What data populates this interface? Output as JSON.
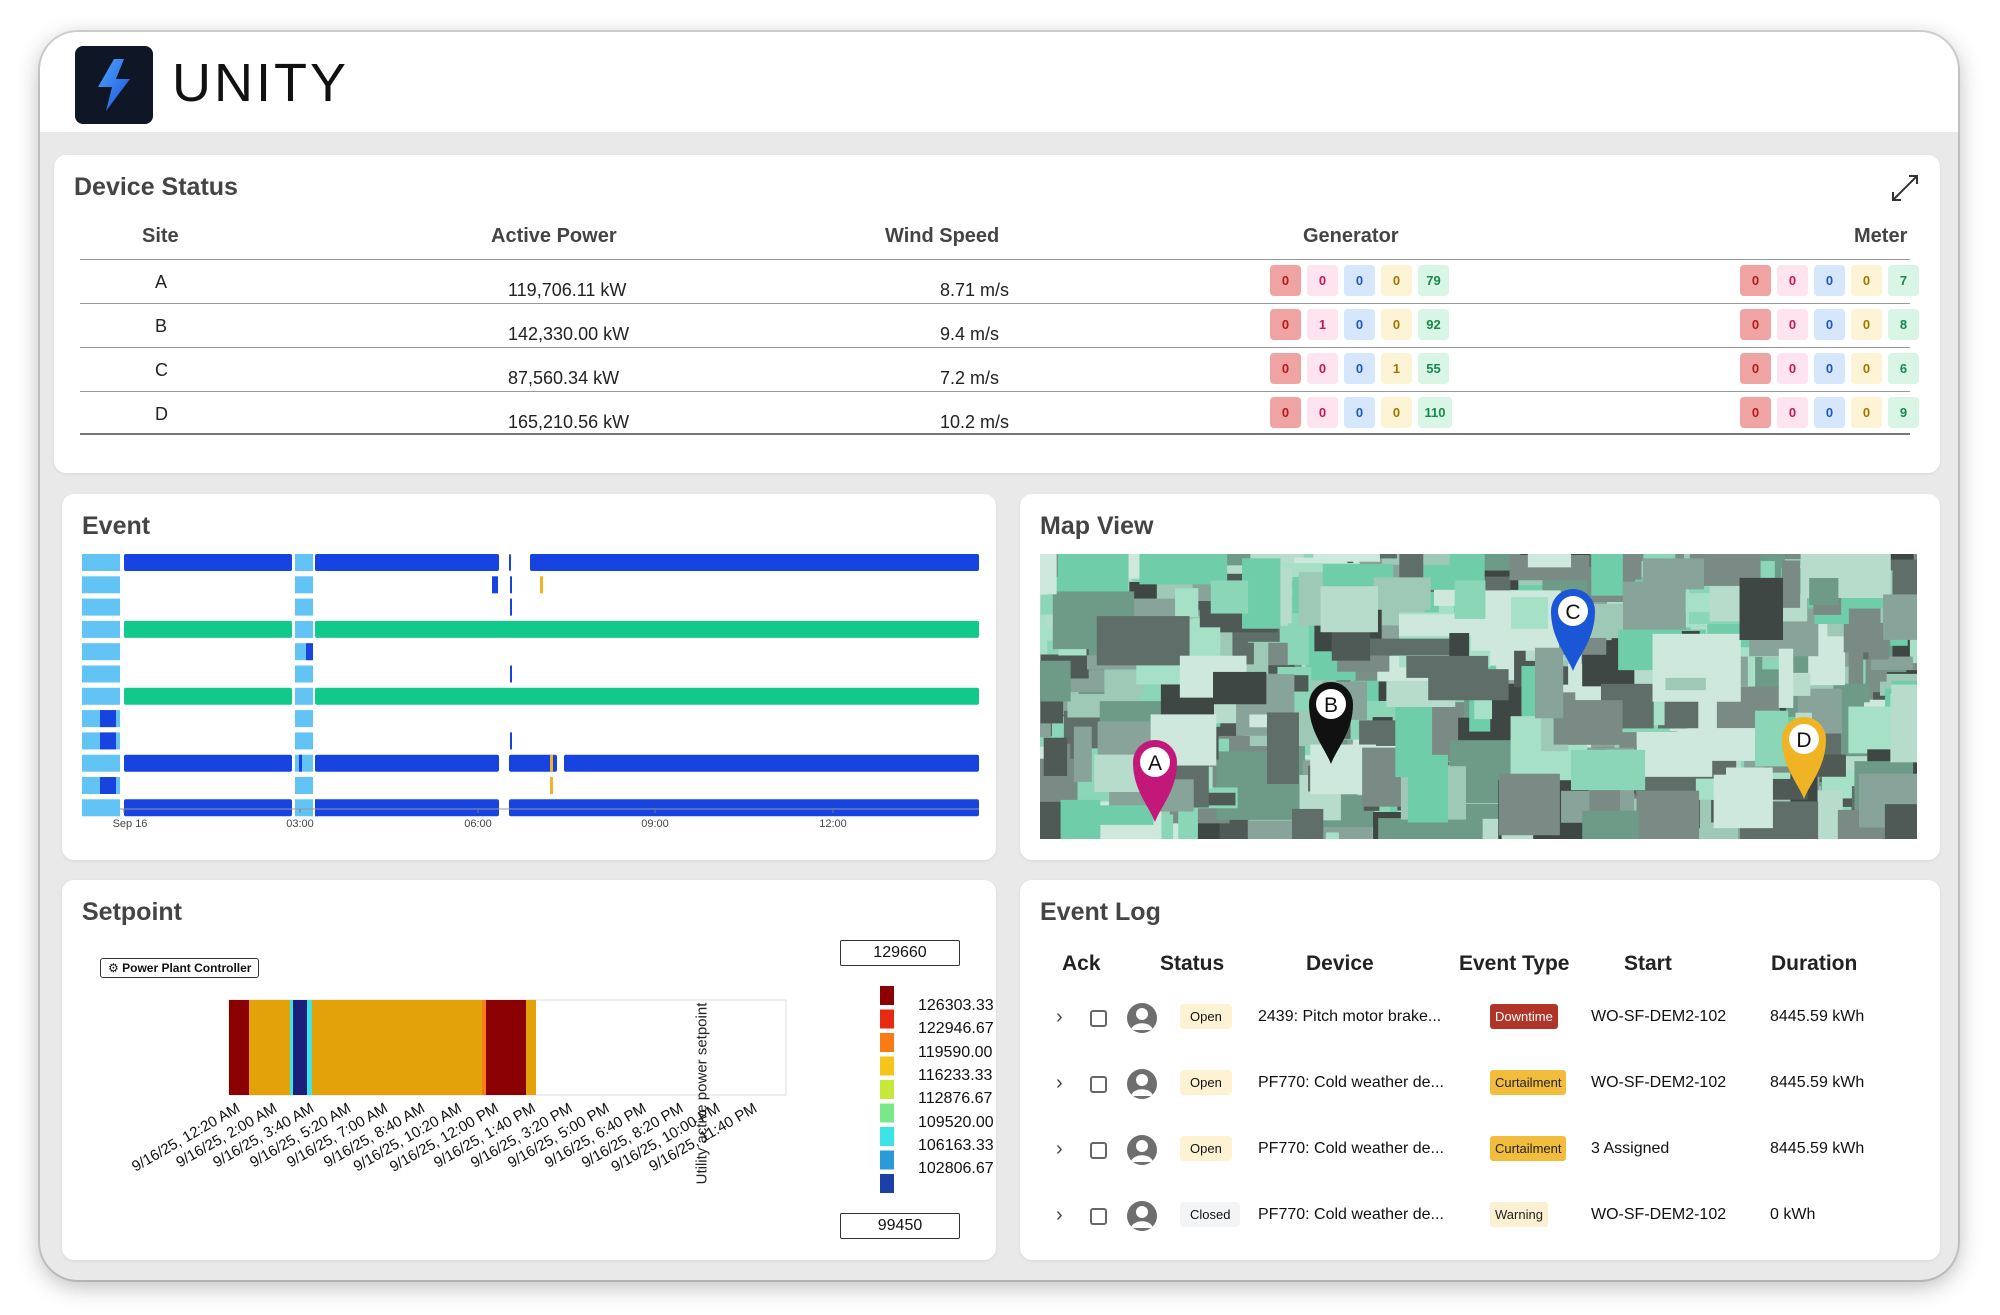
{
  "brand": {
    "name": "UNITY"
  },
  "device_status": {
    "title": "Device Status",
    "columns": [
      "Site",
      "Active Power",
      "Wind Speed",
      "Generator",
      "Meter"
    ],
    "rows": [
      {
        "site": "A",
        "active_power": "119,706.11 kW",
        "wind_speed": "8.71 m/s",
        "generator": [
          "0",
          "0",
          "0",
          "0",
          "79"
        ],
        "meter": [
          "0",
          "0",
          "0",
          "0",
          "7"
        ]
      },
      {
        "site": "B",
        "active_power": "142,330.00 kW",
        "wind_speed": "9.4 m/s",
        "generator": [
          "0",
          "1",
          "0",
          "0",
          "92"
        ],
        "meter": [
          "0",
          "0",
          "0",
          "0",
          "8"
        ]
      },
      {
        "site": "C",
        "active_power": "87,560.34 kW",
        "wind_speed": "7.2 m/s",
        "generator": [
          "0",
          "0",
          "0",
          "1",
          "55"
        ],
        "meter": [
          "0",
          "0",
          "0",
          "0",
          "6"
        ]
      },
      {
        "site": "D",
        "active_power": "165,210.56 kW",
        "wind_speed": "10.2 m/s",
        "generator": [
          "0",
          "0",
          "0",
          "0",
          "110"
        ],
        "meter": [
          "0",
          "0",
          "0",
          "0",
          "9"
        ]
      }
    ]
  },
  "event": {
    "title": "Event",
    "x_ticks": [
      "Sep 16",
      "03:00",
      "06:00",
      "09:00",
      "12:00"
    ]
  },
  "map": {
    "title": "Map View",
    "markers": [
      {
        "label": "A",
        "color": "#c2187a"
      },
      {
        "label": "B",
        "color": "#111111"
      },
      {
        "label": "C",
        "color": "#1a56d6"
      },
      {
        "label": "D",
        "color": "#f0b323"
      }
    ]
  },
  "setpoint": {
    "title": "Setpoint",
    "badge": "Power Plant Controller",
    "x_ticks": [
      "9/16/25, 12:20 AM",
      "9/16/25, 2:00 AM",
      "9/16/25, 3:40 AM",
      "9/16/25, 5:20 AM",
      "9/16/25, 7:00 AM",
      "9/16/25, 8:40 AM",
      "9/16/25, 10:20 AM",
      "9/16/25, 12:00 PM",
      "9/16/25, 1:40 PM",
      "9/16/25, 3:20 PM",
      "9/16/25, 5:00 PM",
      "9/16/25, 6:40 PM",
      "9/16/25, 8:20 PM",
      "9/16/25, 10:00 PM",
      "9/16/25, 11:40 PM"
    ],
    "legend_title": "Utility active power setpoint",
    "legend_max": "129660",
    "legend_min": "99450",
    "legend_values": [
      "126303.33",
      "122946.67",
      "119590.00",
      "116233.33",
      "112876.67",
      "109520.00",
      "106163.33",
      "102806.67"
    ],
    "legend_colors": [
      "#8b0000",
      "#e82a13",
      "#f77c13",
      "#f5c51a",
      "#c6e83a",
      "#78e889",
      "#3ce4e6",
      "#2a9ad8",
      "#1c3fa8"
    ]
  },
  "event_log": {
    "title": "Event Log",
    "columns": [
      "Ack",
      "Status",
      "Device",
      "Event Type",
      "Start",
      "Duration"
    ],
    "rows": [
      {
        "status": "Open",
        "device": "2439: Pitch motor brake...",
        "event_type": "Downtime",
        "start": "WO-SF-DEM2-102",
        "duration": "8445.59 kWh"
      },
      {
        "status": "Open",
        "device": "PF770: Cold weather de...",
        "event_type": "Curtailment",
        "start": "WO-SF-DEM2-102",
        "duration": "8445.59 kWh"
      },
      {
        "status": "Open",
        "device": "PF770: Cold weather de...",
        "event_type": "Curtailment",
        "start": "3 Assigned",
        "duration": "8445.59 kWh"
      },
      {
        "status": "Closed",
        "device": "PF770: Cold weather de...",
        "event_type": "Warning",
        "start": "WO-SF-DEM2-102",
        "duration": "0 kWh"
      }
    ]
  }
}
